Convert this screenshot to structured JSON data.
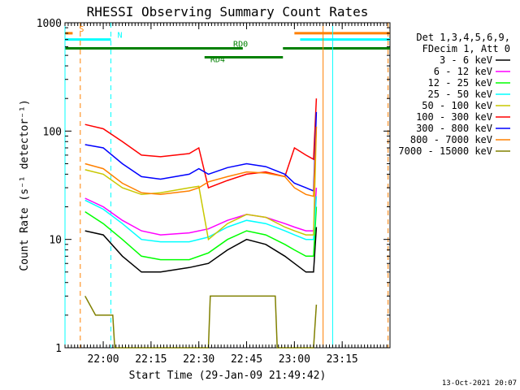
{
  "chart_data": {
    "type": "line",
    "title": "RHESSI Observing Summary Count Rates",
    "xlabel": "Start Time (29-Jan-09 21:49:42)",
    "ylabel": "Count Rate (s⁻¹ detector⁻¹)",
    "y_scale": "log",
    "ylim": [
      1,
      1000
    ],
    "xlim_minutes": [
      21.8,
      23.5
    ],
    "x_ticks": [
      {
        "label": "22:00",
        "value": 22.0
      },
      {
        "label": "22:15",
        "value": 22.25
      },
      {
        "label": "22:30",
        "value": 22.5
      },
      {
        "label": "22:45",
        "value": 22.75
      },
      {
        "label": "23:00",
        "value": 23.0
      },
      {
        "label": "23:15",
        "value": 23.25
      }
    ],
    "y_ticks": [
      {
        "label": "1",
        "value": 1
      },
      {
        "label": "10",
        "value": 10
      },
      {
        "label": "100",
        "value": 100
      },
      {
        "label": "1000",
        "value": 1000
      }
    ],
    "legend_header": [
      "Det 1,3,4,5,6,9,",
      "FDecim 1, Att 0"
    ],
    "legend_placement": "right",
    "series": [
      {
        "name": "3 - 6 keV",
        "color": "#000000",
        "x": [
          21.905,
          22.0,
          22.1,
          22.2,
          22.3,
          22.45,
          22.55,
          22.65,
          22.75,
          22.85,
          22.95,
          23.0,
          23.06,
          23.1,
          23.115
        ],
        "y": [
          12,
          11,
          7,
          5,
          5,
          5.5,
          6,
          8,
          10,
          9,
          7,
          6,
          5,
          5,
          13
        ]
      },
      {
        "name": "6 - 12 keV",
        "color": "#ff00ff",
        "x": [
          21.905,
          22.0,
          22.1,
          22.2,
          22.3,
          22.45,
          22.55,
          22.65,
          22.75,
          22.85,
          22.95,
          23.0,
          23.06,
          23.1,
          23.115
        ],
        "y": [
          24,
          20,
          15,
          12,
          11,
          11.5,
          12.5,
          15,
          17,
          16,
          14,
          13,
          12,
          12,
          30
        ]
      },
      {
        "name": "12 - 25 keV",
        "color": "#00ff00",
        "x": [
          21.905,
          22.0,
          22.1,
          22.2,
          22.3,
          22.45,
          22.55,
          22.65,
          22.75,
          22.85,
          22.95,
          23.0,
          23.06,
          23.1,
          23.115
        ],
        "y": [
          18,
          14,
          10,
          7,
          6.5,
          6.5,
          7.5,
          10,
          12,
          11,
          9,
          8,
          7,
          7,
          20
        ]
      },
      {
        "name": "25 - 50 keV",
        "color": "#00ffff",
        "x": [
          21.905,
          22.0,
          22.1,
          22.2,
          22.3,
          22.45,
          22.55,
          22.65,
          22.75,
          22.85,
          22.95,
          23.0,
          23.06,
          23.1,
          23.115
        ],
        "y": [
          23,
          19,
          14,
          10,
          9.5,
          9.5,
          10.5,
          13,
          15,
          14,
          12,
          11,
          10,
          10,
          25
        ]
      },
      {
        "name": "50 - 100 keV",
        "color": "#c8c800",
        "x": [
          21.905,
          22.0,
          22.1,
          22.2,
          22.3,
          22.45,
          22.5,
          22.55,
          22.65,
          22.75,
          22.85,
          22.95,
          23.0,
          23.06,
          23.1,
          23.115
        ],
        "y": [
          44,
          40,
          30,
          26,
          27,
          30,
          31,
          10,
          14,
          17,
          16,
          13,
          12,
          11,
          11,
          110
        ]
      },
      {
        "name": "100 - 300 keV",
        "color": "#ff0000",
        "x": [
          21.905,
          22.0,
          22.1,
          22.2,
          22.3,
          22.45,
          22.5,
          22.55,
          22.65,
          22.75,
          22.85,
          22.95,
          23.0,
          23.06,
          23.1,
          23.115
        ],
        "y": [
          115,
          105,
          80,
          60,
          58,
          62,
          70,
          30,
          35,
          40,
          42,
          38,
          70,
          60,
          55,
          200
        ]
      },
      {
        "name": "300 - 800 keV",
        "color": "#0000ff",
        "x": [
          21.905,
          22.0,
          22.1,
          22.2,
          22.3,
          22.45,
          22.5,
          22.55,
          22.65,
          22.75,
          22.85,
          22.95,
          23.0,
          23.06,
          23.1,
          23.115
        ],
        "y": [
          75,
          70,
          50,
          38,
          36,
          40,
          45,
          40,
          46,
          50,
          47,
          40,
          33,
          30,
          28,
          150
        ]
      },
      {
        "name": "800 - 7000 keV",
        "color": "#ff8000",
        "x": [
          21.905,
          22.0,
          22.1,
          22.2,
          22.3,
          22.45,
          22.5,
          22.55,
          22.65,
          22.75,
          22.85,
          22.95,
          23.0,
          23.06,
          23.1,
          23.115
        ],
        "y": [
          50,
          45,
          33,
          27,
          26,
          28,
          30,
          34,
          38,
          42,
          41,
          38,
          30,
          26,
          25,
          110
        ]
      },
      {
        "name": "7000 - 15000 keV",
        "color": "#808000",
        "x": [
          21.905,
          21.96,
          21.97,
          22.05,
          22.06,
          22.55,
          22.56,
          22.9,
          22.91,
          23.1,
          23.115
        ],
        "y": [
          3,
          2,
          2,
          2,
          1,
          1,
          3,
          3,
          1,
          1,
          2.5
        ]
      }
    ],
    "flags": [
      {
        "label": "S",
        "color": "#ff8000",
        "x": [
          21.8,
          21.84
        ],
        "y": 800
      },
      {
        "label": "N",
        "color": "#00ffff",
        "x": [
          21.8,
          22.04
        ],
        "y": 700
      },
      {
        "label": "RD0",
        "color": "#008000",
        "x": [
          21.8,
          22.73
        ],
        "y": 580
      },
      {
        "label": "RD4",
        "color": "#008000",
        "x": [
          22.53,
          22.94
        ],
        "y": 480
      }
    ],
    "flag_segments_extra": [
      {
        "color": "#008000",
        "x": [
          22.94,
          23.5
        ],
        "y": 580
      },
      {
        "color": "#ff8000",
        "x": [
          23.0,
          23.5
        ],
        "y": 800
      },
      {
        "color": "#00ffff",
        "x": [
          23.03,
          23.5
        ],
        "y": 700
      }
    ],
    "vertical_markers": [
      {
        "color": "#00ffff",
        "x": 21.8,
        "style": "solid"
      },
      {
        "color": "#ff8000",
        "x": 21.88,
        "style": "dashed"
      },
      {
        "color": "#00ffff",
        "x": 22.04,
        "style": "dashed"
      },
      {
        "color": "#ff8000",
        "x": 23.15,
        "style": "solid"
      },
      {
        "color": "#00ffff",
        "x": 23.2,
        "style": "solid"
      },
      {
        "color": "#ff8000",
        "x": 23.49,
        "style": "dashed"
      }
    ],
    "timestamp": "13-Oct-2021 20:07"
  }
}
